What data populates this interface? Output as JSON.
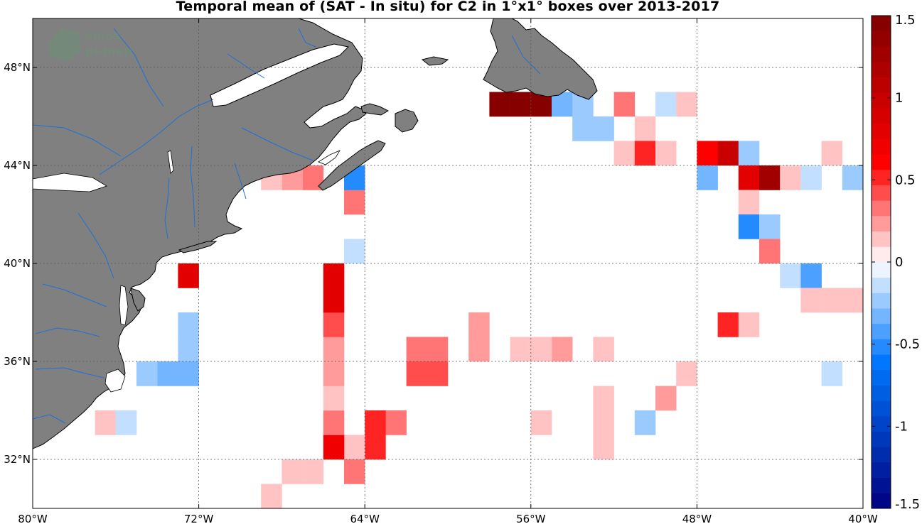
{
  "title": "Temporal mean of (SAT - In situ) for C2 in 1°x1° boxes over 2013-2017",
  "watermark": {
    "line1": "smos",
    "line2": "pi-mep"
  },
  "colors": {
    "land": "#808080",
    "coast": "#000000",
    "rivers": "#1f6fd6",
    "grid": "#555555"
  },
  "chart_data": {
    "type": "heatmap",
    "units_note": "",
    "xlim": [
      -80,
      -40
    ],
    "ylim": [
      30,
      50
    ],
    "x_ticks": [
      -80,
      -72,
      -64,
      -56,
      -48,
      -40
    ],
    "x_tick_labels": [
      "80°W",
      "72°W",
      "64°W",
      "56°W",
      "48°W",
      "40°W"
    ],
    "y_ticks": [
      32,
      36,
      40,
      44,
      48
    ],
    "y_tick_labels": [
      "32°N",
      "36°N",
      "40°N",
      "44°N",
      "48°N"
    ],
    "grid": true,
    "colorbar": {
      "range": [
        -1.5,
        1.5
      ],
      "n_levels": 32,
      "tick_values": [
        1.5,
        1,
        0.5,
        0,
        -0.5,
        -1,
        -1.5
      ],
      "tick_labels": [
        "1.5",
        "1",
        "0.5",
        "0",
        "-0.5",
        "-1",
        "-1.5"
      ],
      "placement": "right"
    },
    "cells": [
      {
        "lon": -57,
        "lat": 46,
        "value": 1.45
      },
      {
        "lon": -58,
        "lat": 46,
        "value": 1.45
      },
      {
        "lon": -56,
        "lat": 46,
        "value": 1.45
      },
      {
        "lon": -55,
        "lat": 46,
        "value": -0.35
      },
      {
        "lon": -54,
        "lat": 46,
        "value": -0.25
      },
      {
        "lon": -52,
        "lat": 46,
        "value": 0.35
      },
      {
        "lon": -50,
        "lat": 46,
        "value": -0.1
      },
      {
        "lon": -49,
        "lat": 46,
        "value": 0.12
      },
      {
        "lon": -54,
        "lat": 45,
        "value": -0.2
      },
      {
        "lon": -53,
        "lat": 45,
        "value": -0.2
      },
      {
        "lon": -51,
        "lat": 45,
        "value": 0.15
      },
      {
        "lon": -52,
        "lat": 44,
        "value": 0.1
      },
      {
        "lon": -51,
        "lat": 44,
        "value": 0.55
      },
      {
        "lon": -50,
        "lat": 44,
        "value": 0.12
      },
      {
        "lon": -48,
        "lat": 44,
        "value": 0.65
      },
      {
        "lon": -47,
        "lat": 44,
        "value": 1.0
      },
      {
        "lon": -46,
        "lat": 44,
        "value": -0.25
      },
      {
        "lon": -42,
        "lat": 44,
        "value": 0.12
      },
      {
        "lon": -48,
        "lat": 43,
        "value": -0.35
      },
      {
        "lon": -46,
        "lat": 43,
        "value": 0.75
      },
      {
        "lon": -45,
        "lat": 43,
        "value": 1.3
      },
      {
        "lon": -44,
        "lat": 43,
        "value": 0.15
      },
      {
        "lon": -43,
        "lat": 43,
        "value": -0.1
      },
      {
        "lon": -41,
        "lat": 43,
        "value": -0.2
      },
      {
        "lon": -40,
        "lat": 43,
        "value": -0.2
      },
      {
        "lon": -40,
        "lat": 42,
        "value": -0.3
      },
      {
        "lon": -46,
        "lat": 42,
        "value": 0.15
      },
      {
        "lon": -46,
        "lat": 41,
        "value": -0.55
      },
      {
        "lon": -45,
        "lat": 41,
        "value": -0.2
      },
      {
        "lon": -45,
        "lat": 40,
        "value": 0.3
      },
      {
        "lon": -44,
        "lat": 39,
        "value": -0.1
      },
      {
        "lon": -43,
        "lat": 39,
        "value": -0.45
      },
      {
        "lon": -43,
        "lat": 38,
        "value": 0.12
      },
      {
        "lon": -42,
        "lat": 38,
        "value": 0.12
      },
      {
        "lon": -41,
        "lat": 38,
        "value": 0.12
      },
      {
        "lon": -47,
        "lat": 37,
        "value": 0.55
      },
      {
        "lon": -46,
        "lat": 37,
        "value": 0.15
      },
      {
        "lon": -49,
        "lat": 35,
        "value": 0.15
      },
      {
        "lon": -42,
        "lat": 35,
        "value": -0.1
      },
      {
        "lon": -50,
        "lat": 34,
        "value": 0.2
      },
      {
        "lon": -51,
        "lat": 33,
        "value": -0.25
      },
      {
        "lon": -53,
        "lat": 34,
        "value": 0.15
      },
      {
        "lon": -53,
        "lat": 33,
        "value": 0.15
      },
      {
        "lon": -53,
        "lat": 32,
        "value": 0.15
      },
      {
        "lon": -56,
        "lat": 33,
        "value": 0.15
      },
      {
        "lon": -53,
        "lat": 36,
        "value": 0.12
      },
      {
        "lon": -55,
        "lat": 36,
        "value": 0.25
      },
      {
        "lon": -56,
        "lat": 36,
        "value": 0.12
      },
      {
        "lon": -57,
        "lat": 36,
        "value": 0.12
      },
      {
        "lon": -59,
        "lat": 37,
        "value": 0.25
      },
      {
        "lon": -59,
        "lat": 36,
        "value": 0.25
      },
      {
        "lon": -61,
        "lat": 36,
        "value": 0.3
      },
      {
        "lon": -62,
        "lat": 36,
        "value": 0.3
      },
      {
        "lon": -61,
        "lat": 35,
        "value": 0.45
      },
      {
        "lon": -62,
        "lat": 35,
        "value": 0.45
      },
      {
        "lon": -63,
        "lat": 33,
        "value": 0.35
      },
      {
        "lon": -64,
        "lat": 33,
        "value": 0.5
      },
      {
        "lon": -64,
        "lat": 32,
        "value": 0.55
      },
      {
        "lon": -65,
        "lat": 32,
        "value": 0.12
      },
      {
        "lon": -65,
        "lat": 31,
        "value": 0.3
      },
      {
        "lon": -66,
        "lat": 32,
        "value": 0.7
      },
      {
        "lon": -66,
        "lat": 33,
        "value": 0.3
      },
      {
        "lon": -66,
        "lat": 34,
        "value": 0.12
      },
      {
        "lon": -66,
        "lat": 35,
        "value": 0.25
      },
      {
        "lon": -66,
        "lat": 36,
        "value": 0.25
      },
      {
        "lon": -66,
        "lat": 37,
        "value": 0.4
      },
      {
        "lon": -66,
        "lat": 38,
        "value": 0.75
      },
      {
        "lon": -66,
        "lat": 39,
        "value": 0.75
      },
      {
        "lon": -67,
        "lat": 31,
        "value": 0.12
      },
      {
        "lon": -68,
        "lat": 31,
        "value": 0.12
      },
      {
        "lon": -69,
        "lat": 30,
        "value": 0.12
      },
      {
        "lon": -65,
        "lat": 40,
        "value": -0.1
      },
      {
        "lon": -65,
        "lat": 42,
        "value": 0.35
      },
      {
        "lon": -65,
        "lat": 43,
        "value": -0.5
      },
      {
        "lon": -67,
        "lat": 43,
        "value": 0.35
      },
      {
        "lon": -68,
        "lat": 43,
        "value": 0.25
      },
      {
        "lon": -69,
        "lat": 43,
        "value": 0.15
      },
      {
        "lon": -73,
        "lat": 39,
        "value": 0.8
      },
      {
        "lon": -73,
        "lat": 37,
        "value": -0.2
      },
      {
        "lon": -73,
        "lat": 36,
        "value": -0.2
      },
      {
        "lon": -73,
        "lat": 35,
        "value": -0.3
      },
      {
        "lon": -74,
        "lat": 35,
        "value": -0.3
      },
      {
        "lon": -75,
        "lat": 35,
        "value": -0.2
      },
      {
        "lon": -77,
        "lat": 33,
        "value": 0.15
      },
      {
        "lon": -76,
        "lat": 33,
        "value": -0.1
      }
    ]
  }
}
